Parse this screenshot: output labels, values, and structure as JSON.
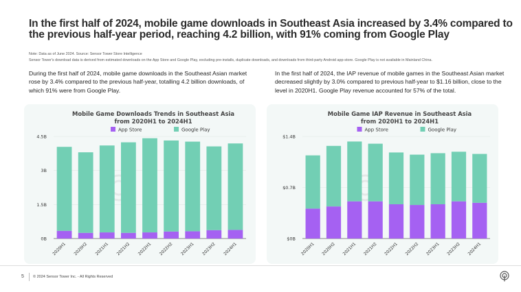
{
  "header": {
    "title": "In the first half of 2024, mobile game downloads in Southeast Asia increased by 3.4% compared to the previous half-year period, reaching 4.2 billion, with 91% coming from Google Play",
    "note1": "Note: Data as of June 2024.  Source: Sensor Tower Store Intelligence",
    "note2": "Sensor Tower's download data is derived from estimated downloads on the App Store and Google Play, excluding pre-installs, duplicate downloads, and downloads from third-party Android app-store. Google Play is not available in Mainland China."
  },
  "paragraphs": {
    "left": "During the first half of 2024, mobile game downloads in the Southeast Asian market rose by 3.4% compared to the previous half-year, totalling 4.2 billion downloads, of which 91% were from Google Play.",
    "right": "In the first half of 2024, the IAP revenue of mobile games in the Southeast Asian market decreased slightly by 3.0% compared to previous half-year to $1.16 billion, close to the level in 2020H1. Google Play revenue accounted for 57% of the total."
  },
  "chart_data": [
    {
      "type": "bar",
      "stacked": true,
      "title": [
        "Mobile Game Downloads Trends in Southeast Asia",
        "from 2020H1 to 2024H1"
      ],
      "categories": [
        "2020H1",
        "2020H2",
        "2021H1",
        "2021H2",
        "2022H1",
        "2022H2",
        "2023H1",
        "2023H2",
        "2024H1"
      ],
      "series": [
        {
          "name": "App Store",
          "color": "#a561f2",
          "values": [
            0.34,
            0.25,
            0.27,
            0.25,
            0.27,
            0.31,
            0.32,
            0.37,
            0.38
          ]
        },
        {
          "name": "Google Play",
          "color": "#72cfb4",
          "values": [
            3.7,
            3.55,
            3.83,
            3.99,
            4.15,
            4.01,
            3.95,
            3.69,
            3.81
          ]
        }
      ],
      "yticks": [
        0,
        1.5,
        3,
        4.5
      ],
      "ytick_labels": [
        "0B",
        "1.5B",
        "3B",
        "4.5B"
      ],
      "ylim": [
        0,
        4.5
      ],
      "grid": true,
      "legend": "top",
      "watermark": "SensorTower"
    },
    {
      "type": "bar",
      "stacked": true,
      "title": [
        "Mobile Game IAP Revenue in Southeast Asia",
        "from 2020H1 to 2024H1"
      ],
      "categories": [
        "2020H1",
        "2020H2",
        "2021H1",
        "2021H2",
        "2022H1",
        "2022H2",
        "2023H1",
        "2023H2",
        "2024H1"
      ],
      "series": [
        {
          "name": "App Store",
          "color": "#a561f2",
          "values": [
            0.41,
            0.44,
            0.51,
            0.51,
            0.47,
            0.46,
            0.47,
            0.51,
            0.49
          ]
        },
        {
          "name": "Google Play",
          "color": "#72cfb4",
          "values": [
            0.73,
            0.83,
            0.82,
            0.79,
            0.71,
            0.69,
            0.7,
            0.68,
            0.67
          ]
        }
      ],
      "yticks": [
        0,
        0.7,
        1.4
      ],
      "ytick_labels": [
        "$0B",
        "$0.7B",
        "$1.4B"
      ],
      "ylim": [
        0,
        1.4
      ],
      "grid": true,
      "legend": "top",
      "watermark": "SensorTower"
    }
  ],
  "footer": {
    "page": "5",
    "copyright": "© 2024 Sensor Tower Inc. - All Rights Reserved",
    "logo": "sensor-tower-logo"
  }
}
